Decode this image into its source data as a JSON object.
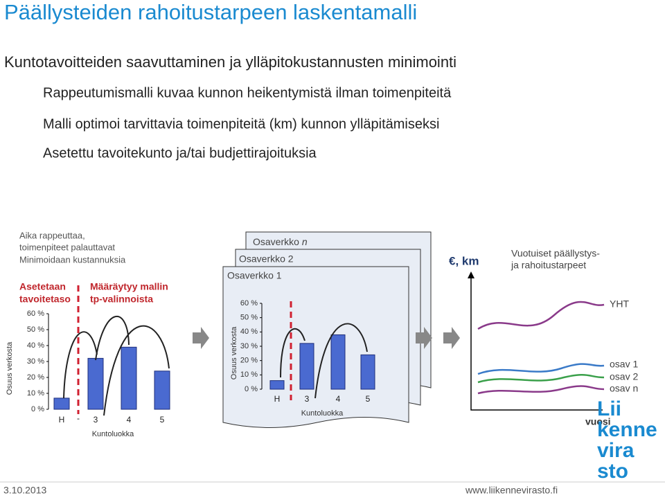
{
  "header": {
    "title": "Päällysteiden rahoitustarpeen laskentamalli"
  },
  "bullets": [
    "Kuntotavoitteiden saavuttaminen ja ylläpitokustannusten minimointi"
  ],
  "subbullets": [
    "Rappeutumismalli kuvaa kunnon heikentymistä ilman toimenpiteitä",
    "Malli optimoi tarvittavia toimenpiteitä (km) kunnon ylläpitämiseksi",
    "Asetettu tavoitekunto ja/tai budjettirajoituksia"
  ],
  "left": {
    "notes": [
      "Aika rappeuttaa,",
      "toimenpiteet palauttavat",
      "Minimoidaan kustannuksia"
    ],
    "target": [
      "Asetetaan",
      "tavoitetaso"
    ],
    "model": [
      "Määräytyy mallin",
      "tp-valinnoista"
    ],
    "chart": {
      "y_label": "Osuus verkosta",
      "x_label": "Kuntoluokka",
      "categories": [
        "H",
        "3",
        "4",
        "5"
      ],
      "values": [
        7,
        32,
        39,
        24
      ],
      "divider_label": "-",
      "yticks": [
        {
          "value": 0,
          "label": "0 %"
        },
        {
          "value": 10,
          "label": "10 %"
        },
        {
          "value": 20,
          "label": "20 %"
        },
        {
          "value": 30,
          "label": "30 %"
        },
        {
          "value": 40,
          "label": "40 %"
        },
        {
          "value": 50,
          "label": "50 %"
        },
        {
          "value": 60,
          "label": "60 %"
        }
      ]
    }
  },
  "middle": {
    "networks": [
      {
        "text": "Osaverkko ",
        "var": "n"
      },
      {
        "text": "Osaverkko 2"
      },
      {
        "text": "Osaverkko 1"
      }
    ],
    "chart": {
      "y_label": "Osuus verkosta",
      "x_label": "Kuntoluokka",
      "categories": [
        "H",
        "3",
        "4",
        "5"
      ],
      "values": [
        6,
        32,
        38,
        24
      ],
      "yticks": [
        {
          "value": 0,
          "label": "0 %"
        },
        {
          "value": 10,
          "label": "10 %"
        },
        {
          "value": 20,
          "label": "20 %"
        },
        {
          "value": 30,
          "label": "30 %"
        },
        {
          "value": 40,
          "label": "40 %"
        },
        {
          "value": 50,
          "label": "50 %"
        },
        {
          "value": 60,
          "label": "60 %"
        }
      ]
    }
  },
  "right": {
    "unit": "€, km",
    "title": [
      "Vuotuiset päällystys-",
      "ja rahoitustarpeet"
    ],
    "series": [
      "YHT",
      "osav 1",
      "osav 2",
      "osav n"
    ],
    "x_label": "vuosi"
  },
  "logo": [
    "Lii",
    "kenne",
    "vira",
    "sto"
  ],
  "footer": {
    "date": "3.10.2013",
    "url": "www.liikennevirasto.fi"
  }
}
